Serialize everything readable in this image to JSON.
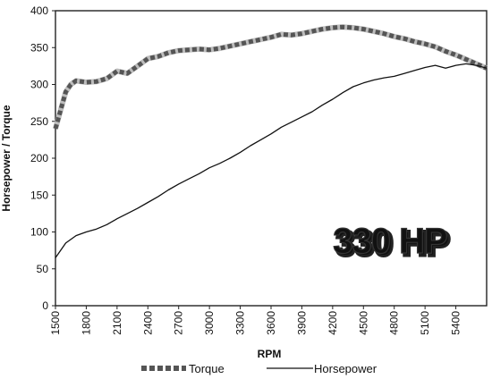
{
  "chart_data": {
    "type": "line",
    "xlabel": "RPM",
    "ylabel": "Horsepower / Torque",
    "xlim": [
      1500,
      5700
    ],
    "ylim": [
      0,
      400
    ],
    "yticks": [
      0,
      50,
      100,
      150,
      200,
      250,
      300,
      350,
      400
    ],
    "xticks": [
      1500,
      1800,
      2100,
      2400,
      2700,
      3000,
      3300,
      3600,
      3900,
      4200,
      4500,
      4800,
      5100,
      5400
    ],
    "grid": false,
    "legend_position": "bottom",
    "annotation": "330 HP",
    "series": [
      {
        "name": "Torque",
        "style": "dashed-thick",
        "color": "#555555",
        "x": [
          1500,
          1550,
          1600,
          1650,
          1700,
          1800,
          1900,
          2000,
          2100,
          2200,
          2300,
          2400,
          2500,
          2600,
          2700,
          2800,
          2900,
          3000,
          3100,
          3200,
          3300,
          3400,
          3500,
          3600,
          3700,
          3800,
          3900,
          4000,
          4100,
          4200,
          4300,
          4400,
          4500,
          4600,
          4700,
          4800,
          4900,
          5000,
          5100,
          5200,
          5300,
          5400,
          5500,
          5600,
          5700
        ],
        "values": [
          240,
          265,
          290,
          300,
          305,
          303,
          304,
          308,
          318,
          315,
          325,
          335,
          338,
          343,
          346,
          347,
          348,
          347,
          349,
          352,
          355,
          358,
          361,
          364,
          368,
          367,
          369,
          372,
          375,
          377,
          378,
          377,
          375,
          372,
          369,
          365,
          362,
          358,
          355,
          351,
          345,
          340,
          334,
          328,
          322
        ]
      },
      {
        "name": "Horsepower",
        "style": "solid",
        "color": "#111111",
        "x": [
          1500,
          1600,
          1700,
          1800,
          1900,
          2000,
          2100,
          2200,
          2300,
          2400,
          2500,
          2600,
          2700,
          2800,
          2900,
          3000,
          3100,
          3200,
          3300,
          3400,
          3500,
          3600,
          3700,
          3800,
          3900,
          4000,
          4100,
          4200,
          4300,
          4400,
          4500,
          4600,
          4700,
          4800,
          4900,
          5000,
          5100,
          5200,
          5300,
          5400,
          5500,
          5600,
          5700
        ],
        "values": [
          65,
          85,
          95,
          100,
          104,
          110,
          118,
          125,
          132,
          140,
          148,
          157,
          165,
          172,
          179,
          187,
          193,
          200,
          208,
          217,
          225,
          233,
          242,
          249,
          256,
          263,
          272,
          280,
          289,
          297,
          302,
          306,
          309,
          311,
          315,
          319,
          323,
          326,
          322,
          326,
          328,
          326,
          322
        ]
      }
    ]
  }
}
